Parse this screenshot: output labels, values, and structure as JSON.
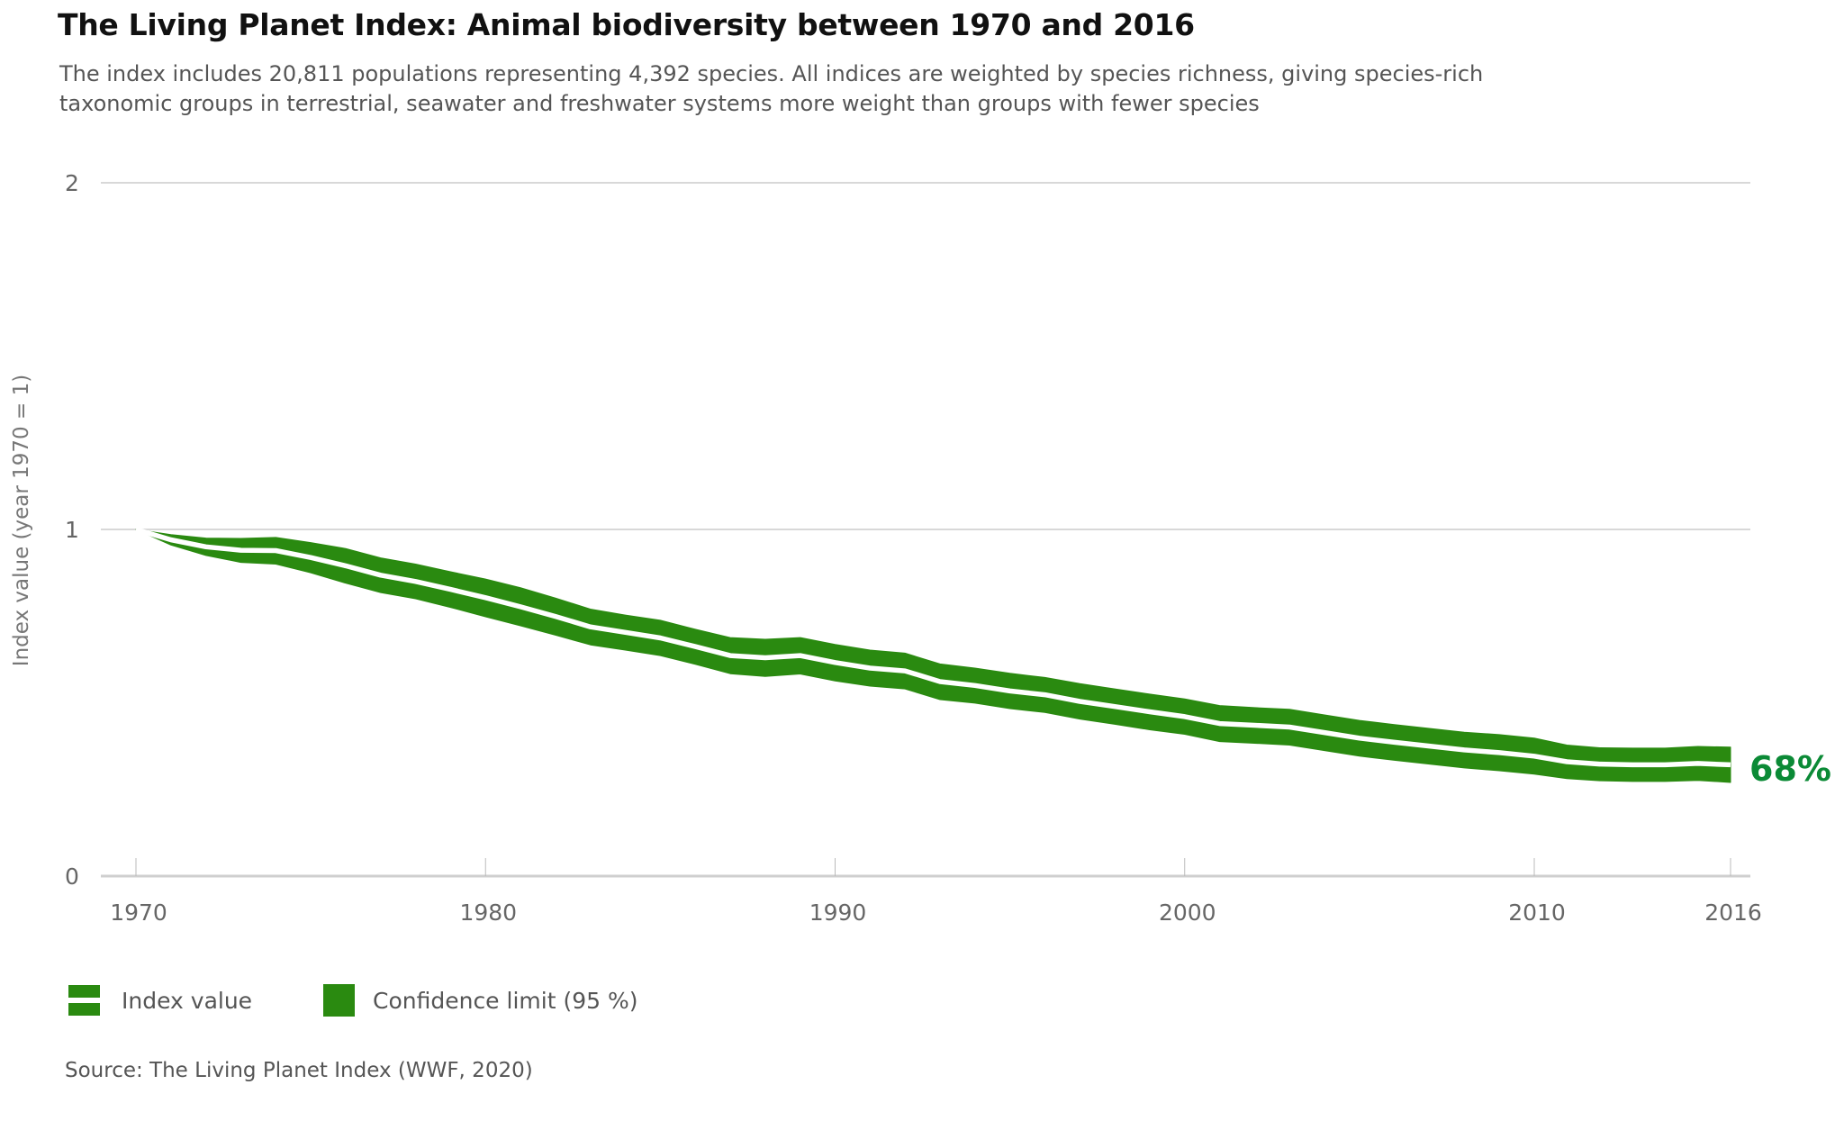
{
  "header": {
    "title": "The Living Planet Index: Animal biodiversity between 1970 and 2016",
    "subtitle_lines": [
      "The index includes 20,811 populations representing 4,392 species. All indices are weighted by species richness, giving species-rich",
      "taxonomic groups in terrestrial, seawater and freshwater systems more weight than groups with fewer species"
    ]
  },
  "legend": {
    "items": [
      {
        "label": "Index value",
        "type": "index"
      },
      {
        "label": "Confidence limit (95 %)",
        "type": "ci"
      }
    ]
  },
  "source": "Source: The Living Planet Index (WWF, 2020)",
  "colors": {
    "band": "#2a8a10",
    "index_line": "#ffffff",
    "end_label": "#0b8a36",
    "grid": "#cccccc",
    "axis": "#cfcfcf"
  },
  "chart_data": {
    "type": "area",
    "title": "The Living Planet Index: Animal biodiversity between 1970 and 2016",
    "xlabel": "",
    "ylabel": "Index value (year 1970 = 1)",
    "ylim": [
      0,
      2
    ],
    "xlim": [
      1970,
      2016
    ],
    "grid": true,
    "x_ticks": [
      1970,
      1980,
      1990,
      2000,
      2010,
      2016
    ],
    "y_ticks": [
      0,
      1,
      2
    ],
    "legend_position": "bottom-left",
    "end_annotation": "68%",
    "x": [
      1970,
      1971,
      1972,
      1973,
      1974,
      1975,
      1976,
      1977,
      1978,
      1979,
      1980,
      1981,
      1982,
      1983,
      1984,
      1985,
      1986,
      1987,
      1988,
      1989,
      1990,
      1991,
      1992,
      1993,
      1994,
      1995,
      1996,
      1997,
      1998,
      1999,
      2000,
      2001,
      2002,
      2003,
      2004,
      2005,
      2006,
      2007,
      2008,
      2009,
      2010,
      2011,
      2012,
      2013,
      2014,
      2015,
      2016
    ],
    "series": [
      {
        "name": "Confidence limit (95 %) upper",
        "values": [
          1.0,
          0.985,
          0.975,
          0.974,
          0.977,
          0.962,
          0.945,
          0.918,
          0.9,
          0.878,
          0.857,
          0.832,
          0.802,
          0.77,
          0.753,
          0.738,
          0.712,
          0.688,
          0.683,
          0.688,
          0.668,
          0.652,
          0.643,
          0.612,
          0.6,
          0.585,
          0.573,
          0.555,
          0.54,
          0.525,
          0.511,
          0.492,
          0.486,
          0.481,
          0.465,
          0.449,
          0.437,
          0.426,
          0.415,
          0.408,
          0.398,
          0.378,
          0.37,
          0.369,
          0.369,
          0.374,
          0.372
        ]
      },
      {
        "name": "Index value",
        "values": [
          1.0,
          0.97,
          0.95,
          0.94,
          0.939,
          0.919,
          0.895,
          0.868,
          0.85,
          0.827,
          0.803,
          0.777,
          0.749,
          0.719,
          0.703,
          0.687,
          0.662,
          0.636,
          0.63,
          0.636,
          0.616,
          0.6,
          0.592,
          0.561,
          0.55,
          0.534,
          0.523,
          0.504,
          0.489,
          0.474,
          0.46,
          0.44,
          0.435,
          0.43,
          0.414,
          0.398,
          0.386,
          0.375,
          0.364,
          0.356,
          0.346,
          0.33,
          0.323,
          0.321,
          0.321,
          0.325,
          0.321
        ]
      },
      {
        "name": "Confidence limit (95 %) lower",
        "values": [
          1.0,
          0.955,
          0.925,
          0.905,
          0.9,
          0.875,
          0.845,
          0.818,
          0.8,
          0.775,
          0.748,
          0.722,
          0.695,
          0.667,
          0.652,
          0.636,
          0.611,
          0.584,
          0.576,
          0.583,
          0.563,
          0.548,
          0.54,
          0.509,
          0.499,
          0.483,
          0.472,
          0.453,
          0.438,
          0.422,
          0.409,
          0.388,
          0.383,
          0.378,
          0.362,
          0.346,
          0.334,
          0.323,
          0.312,
          0.304,
          0.294,
          0.281,
          0.275,
          0.273,
          0.273,
          0.276,
          0.27
        ]
      }
    ]
  }
}
